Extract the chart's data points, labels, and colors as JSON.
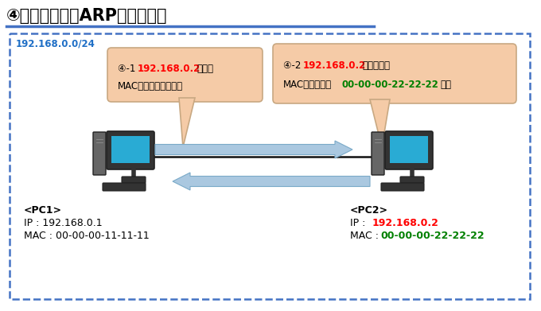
{
  "title": "④知らない場合ARPを実行する",
  "title_color": "#000000",
  "title_fontsize": 15,
  "underline_color": "#4472C4",
  "network_label": "192.168.0.0/24",
  "network_label_color": "#1F6FC6",
  "dashed_box_color": "#4472C4",
  "box_fill_color": "#FFFFFF",
  "bubble1_fill": "#F5CBA7",
  "bubble1_edge": "#C8A882",
  "bubble2_fill": "#F5CBA7",
  "bubble2_edge": "#C8A882",
  "arrow_color": "#AAC8E0",
  "arrow_edge": "#7AAAC8",
  "cable_color": "#111111",
  "pc_tower_color": "#555555",
  "pc_tower_edge": "#222222",
  "pc_monitor_color": "#29ABD4",
  "pc_monitor_edge": "#222222",
  "pc_base_color": "#333333",
  "pc_keyboard_color": "#222222",
  "bubble1_prefix": "④-1 ",
  "bubble1_red": "192.168.0.2",
  "bubble1_suffix1": "の人、",
  "bubble1_line2": "MACアドレス教えて～",
  "bubble2_prefix": "④-2 ",
  "bubble2_red": "192.168.0.2",
  "bubble2_suffix1": "は私です～",
  "bubble2_line2_pre": "MACアドレスは",
  "bubble2_green": "00-00-00-22-22-22",
  "bubble2_line2_suf": "です",
  "pc1_name": "<PC1>",
  "pc1_ip": "IP : 192.168.0.1",
  "pc1_mac": "MAC : 00-00-00-11-11-11",
  "pc2_name": "<PC2>",
  "pc2_ip_pre": "IP : ",
  "pc2_ip_val": "192.168.0.2",
  "pc2_mac_pre": "MAC : ",
  "pc2_mac_val": "00-00-00-22-22-22",
  "red": "#FF0000",
  "green": "#008000",
  "black": "#000000",
  "white": "#FFFFFF"
}
